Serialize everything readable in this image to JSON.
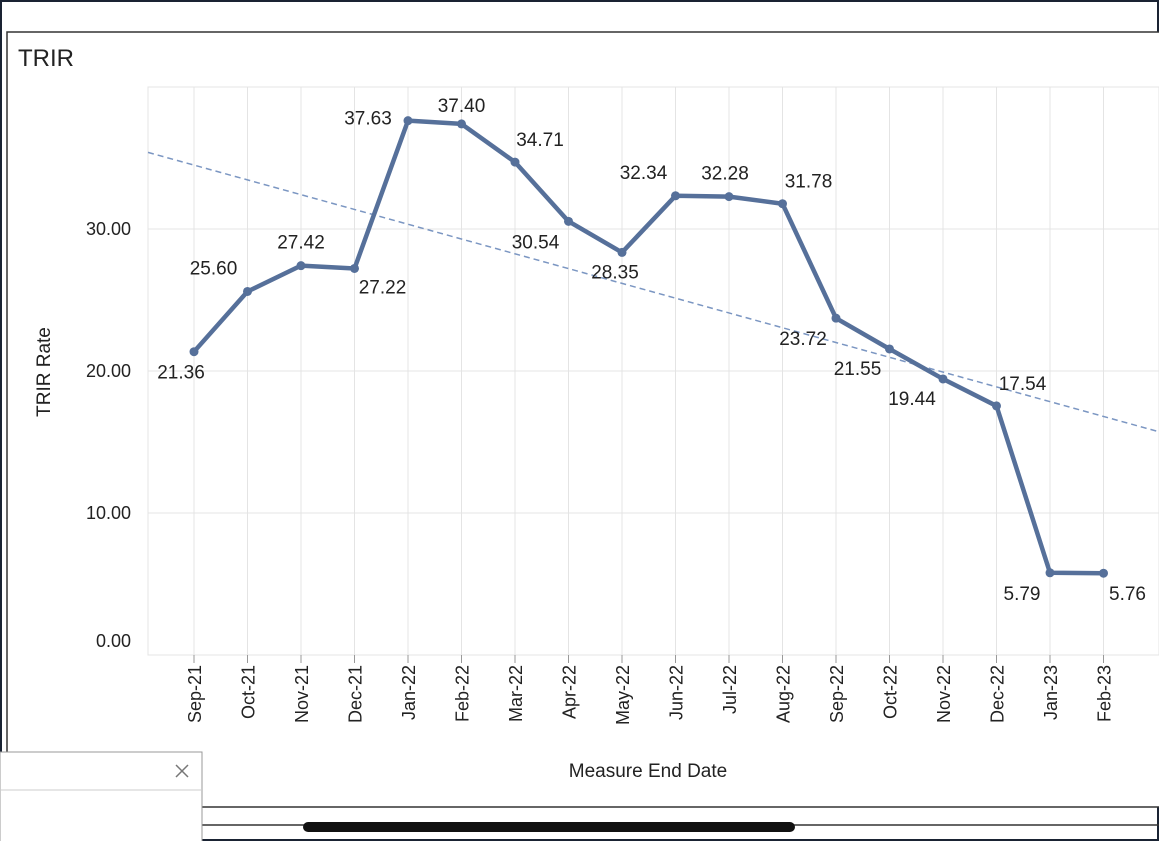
{
  "chart_data": {
    "type": "line",
    "title": "TRIR",
    "y_label": "TRIR Rate",
    "x_label": "Measure End Date",
    "categories": [
      "Sep-21",
      "Oct-21",
      "Nov-21",
      "Dec-21",
      "Jan-22",
      "Feb-22",
      "Mar-22",
      "Apr-22",
      "May-22",
      "Jun-22",
      "Jul-22",
      "Aug-22",
      "Sep-22",
      "Oct-22",
      "Nov-22",
      "Dec-22",
      "Jan-23",
      "Feb-23"
    ],
    "series": [
      {
        "name": "TRIR",
        "color": "#56709a",
        "values": [
          21.36,
          25.6,
          27.42,
          27.22,
          37.63,
          37.4,
          34.71,
          30.54,
          28.35,
          32.34,
          32.28,
          31.78,
          23.72,
          21.55,
          19.44,
          17.54,
          5.79,
          5.76
        ],
        "value_labels": [
          "21.36",
          "25.60",
          "27.42",
          "27.22",
          "37.63",
          "37.40",
          "34.71",
          "30.54",
          "28.35",
          "32.34",
          "32.28",
          "31.78",
          "23.72",
          "21.55",
          "19.44",
          "17.54",
          "5.79",
          "5.76"
        ]
      }
    ],
    "trendline": {
      "color": "#7b96c2",
      "start": 34.5,
      "end": 16.8
    },
    "ylim": [
      0,
      40
    ],
    "yticks": [
      {
        "value": 0,
        "label": "0.00"
      },
      {
        "value": 10,
        "label": "10.00"
      },
      {
        "value": 20,
        "label": "20.00"
      },
      {
        "value": 30,
        "label": "30.00"
      }
    ],
    "grid": true
  }
}
